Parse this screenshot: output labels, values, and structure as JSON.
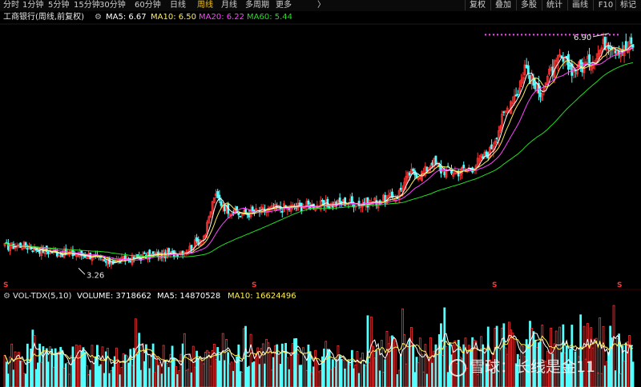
{
  "toolbar": {
    "tabs": [
      "分时",
      "1分钟",
      "5分钟",
      "15分钟",
      "30分钟",
      "60分钟",
      "日线",
      "周线",
      "月线",
      "多周期",
      "更多"
    ],
    "active_tab": "周线",
    "more_chevron": "〉",
    "right_buttons": [
      "复权",
      "叠加",
      "多股",
      "统计",
      "画线",
      "F10",
      "标记"
    ]
  },
  "info": {
    "stock_title": "工商银行(周线,前复权)",
    "settings_icon": "gear-icon",
    "ma5": "MA5: 6.67",
    "ma10": "MA10: 6.50",
    "ma20": "MA20: 6.22",
    "ma60": "MA60: 5.44"
  },
  "chart": {
    "high_label": "6.90",
    "low_label": "3.26",
    "marker_glyph": "S"
  },
  "volume_info": {
    "indicator": "VOL-TDX(5,10)",
    "volume": "VOLUME: 3718662",
    "ma5": "MA5: 14870528",
    "ma10": "MA10: 16624496"
  },
  "watermark": "雪球：长线是金11",
  "colors": {
    "up": "#ff3333",
    "down": "#54ffff",
    "ma5": "#ffffff",
    "ma10": "#ffee55",
    "ma20": "#ff44ff",
    "ma60": "#22dd22",
    "active_tab": "#f0c419"
  },
  "chart_data": {
    "type": "candlestick",
    "title": "工商银行(周线,前复权)",
    "price_range": [
      3.1,
      7.05
    ],
    "annotated_high": 6.9,
    "annotated_low": 3.26,
    "close_points": [
      [
        0,
        3.6
      ],
      [
        10,
        3.62
      ],
      [
        20,
        3.55
      ],
      [
        30,
        3.5
      ],
      [
        40,
        3.48
      ],
      [
        50,
        3.45
      ],
      [
        58,
        3.35
      ],
      [
        66,
        3.38
      ],
      [
        75,
        3.42
      ],
      [
        85,
        3.47
      ],
      [
        95,
        3.48
      ],
      [
        105,
        3.55
      ],
      [
        115,
        3.8
      ],
      [
        120,
        4.4
      ],
      [
        127,
        4.2
      ],
      [
        135,
        4.1
      ],
      [
        145,
        4.15
      ],
      [
        155,
        4.2
      ],
      [
        165,
        4.22
      ],
      [
        175,
        4.25
      ],
      [
        185,
        4.25
      ],
      [
        195,
        4.3
      ],
      [
        205,
        4.28
      ],
      [
        215,
        4.32
      ],
      [
        225,
        4.4
      ],
      [
        232,
        4.75
      ],
      [
        240,
        4.75
      ],
      [
        245,
        4.95
      ],
      [
        250,
        4.8
      ],
      [
        260,
        4.78
      ],
      [
        268,
        4.85
      ],
      [
        278,
        5.1
      ],
      [
        285,
        5.6
      ],
      [
        290,
        5.9
      ],
      [
        295,
        6.1
      ],
      [
        298,
        6.45
      ],
      [
        302,
        6.2
      ],
      [
        306,
        6.0
      ],
      [
        312,
        6.3
      ],
      [
        318,
        6.55
      ],
      [
        325,
        6.4
      ],
      [
        330,
        6.42
      ],
      [
        335,
        6.5
      ],
      [
        340,
        6.65
      ],
      [
        345,
        6.85
      ],
      [
        350,
        6.75
      ],
      [
        355,
        6.7
      ],
      [
        360,
        6.78
      ]
    ],
    "ma_lines": [
      {
        "name": "MA5",
        "value": 6.67
      },
      {
        "name": "MA10",
        "value": 6.5
      },
      {
        "name": "MA20",
        "value": 6.22
      },
      {
        "name": "MA60",
        "value": 5.44
      }
    ],
    "volume": {
      "label": "VOL-TDX(5,10)",
      "latest": 3718662,
      "ma5": 14870528,
      "ma10": 16624496
    }
  }
}
